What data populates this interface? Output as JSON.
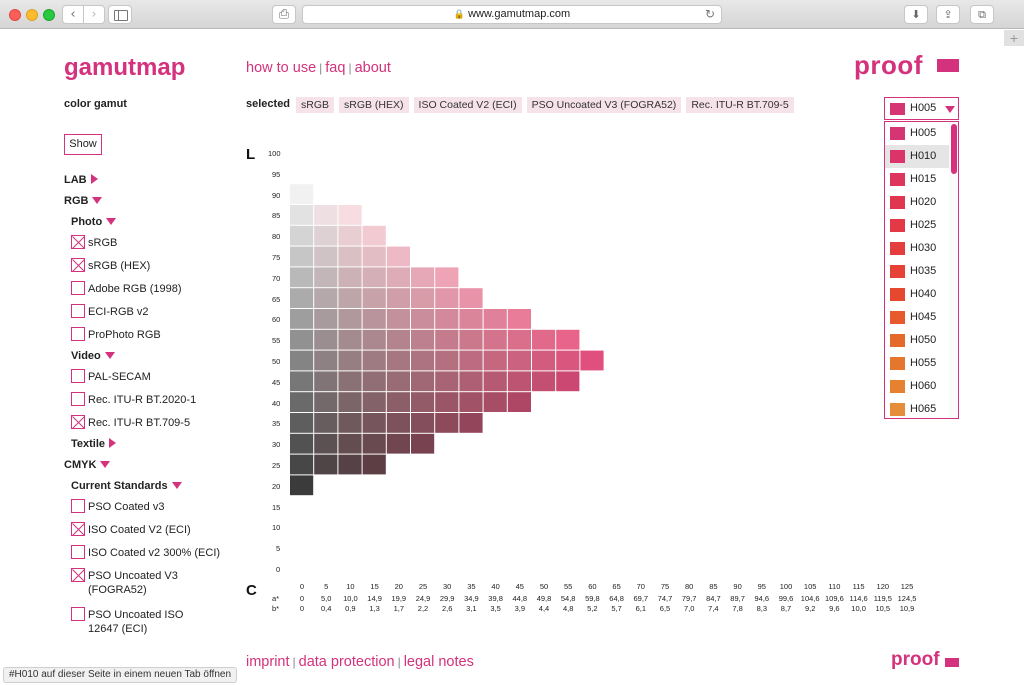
{
  "browser": {
    "url": "www.gamutmap.com",
    "status_text": "#H010 auf dieser Seite in einem neuen Tab öffnen"
  },
  "header": {
    "logo": "gamutmap",
    "nav": [
      "how to use",
      "faq",
      "about"
    ],
    "proof": "proof",
    "accent_color": "#d4327c"
  },
  "sidebar": {
    "title": "color gamut",
    "show_label": "Show",
    "tree": [
      {
        "label": "LAB",
        "level": 0,
        "expanded": false
      },
      {
        "label": "RGB",
        "level": 0,
        "expanded": true
      },
      {
        "label": "Photo",
        "level": 1,
        "expanded": true
      },
      {
        "label": "sRGB",
        "checked": true
      },
      {
        "label": "sRGB (HEX)",
        "checked": true
      },
      {
        "label": "Adobe RGB (1998)",
        "checked": false
      },
      {
        "label": "ECI-RGB v2",
        "checked": false
      },
      {
        "label": "ProPhoto RGB",
        "checked": false
      },
      {
        "label": "Video",
        "level": 1,
        "expanded": true
      },
      {
        "label": "PAL-SECAM",
        "checked": false
      },
      {
        "label": "Rec. ITU-R BT.2020-1",
        "checked": false
      },
      {
        "label": "Rec. ITU-R BT.709-5",
        "checked": true
      },
      {
        "label": "Textile",
        "level": 1,
        "expanded": false
      },
      {
        "label": "CMYK",
        "level": 0,
        "expanded": true
      },
      {
        "label": "Current Standards",
        "level": 1,
        "expanded": true
      },
      {
        "label": "PSO Coated v3",
        "checked": false
      },
      {
        "label": "ISO Coated V2 (ECI)",
        "checked": true
      },
      {
        "label": "ISO Coated v2 300% (ECI)",
        "checked": false
      },
      {
        "label": "PSO Uncoated V3 (FOGRA52)",
        "checked": true
      },
      {
        "label": "PSO Uncoated ISO 12647 (ECI)",
        "checked": false
      }
    ]
  },
  "selected": {
    "label": "selected",
    "chips": [
      "sRGB",
      "sRGB (HEX)",
      "ISO Coated V2 (ECI)",
      "PSO Uncoated V3 (FOGRA52)",
      "Rec. ITU-R BT.709-5"
    ]
  },
  "hue_select": {
    "value": "H005",
    "value_color": "#d63573",
    "highlighted": "H010",
    "options": [
      {
        "label": "H005",
        "color": "#d63573"
      },
      {
        "label": "H010",
        "color": "#db3468"
      },
      {
        "label": "H015",
        "color": "#de355d"
      },
      {
        "label": "H020",
        "color": "#e03652"
      },
      {
        "label": "H025",
        "color": "#e33947"
      },
      {
        "label": "H030",
        "color": "#e43d3e"
      },
      {
        "label": "H035",
        "color": "#e64236"
      },
      {
        "label": "H040",
        "color": "#e6472f"
      },
      {
        "label": "H045",
        "color": "#e65a2d"
      },
      {
        "label": "H050",
        "color": "#e6692c"
      },
      {
        "label": "H055",
        "color": "#e5762d"
      },
      {
        "label": "H060",
        "color": "#e5812f"
      },
      {
        "label": "H065",
        "color": "#e68d3a"
      }
    ]
  },
  "chart_data": {
    "type": "heatmap",
    "hue": "H005",
    "ylabel": "L",
    "xlabel": "C",
    "l_ticks": [
      100,
      95,
      90,
      85,
      80,
      75,
      70,
      65,
      60,
      55,
      50,
      45,
      40,
      35,
      30,
      25,
      20,
      15,
      10,
      5,
      0
    ],
    "c_values": [
      0,
      5,
      10,
      15,
      20,
      25,
      30,
      35,
      40,
      45,
      50,
      55,
      60,
      65,
      70,
      75,
      80,
      85,
      90,
      95,
      100,
      105,
      110,
      115,
      120,
      125
    ],
    "a_label": "a*",
    "a_values": [
      "0",
      "5,0",
      "10,0",
      "14,9",
      "19,9",
      "24,9",
      "29,9",
      "34,9",
      "39,8",
      "44,8",
      "49,8",
      "54,8",
      "59,8",
      "64,8",
      "69,7",
      "74,7",
      "79,7",
      "84,7",
      "89,7",
      "94,6",
      "99,6",
      "104,6",
      "109,6",
      "114,6",
      "119,5",
      "124,5"
    ],
    "b_label": "b*",
    "b_values": [
      "0",
      "0,4",
      "0,9",
      "1,3",
      "1,7",
      "2,2",
      "2,6",
      "3,1",
      "3,5",
      "3,9",
      "4,4",
      "4,8",
      "5,2",
      "5,7",
      "6,1",
      "6,5",
      "7,0",
      "7,4",
      "7,8",
      "8,3",
      "8,7",
      "9,2",
      "9,6",
      "10,0",
      "10,5",
      "10,9"
    ],
    "gamut_max_c_by_L": [
      {
        "L": 95,
        "max_c": 0
      },
      {
        "L": 90,
        "max_c": 10
      },
      {
        "L": 85,
        "max_c": 15
      },
      {
        "L": 80,
        "max_c": 20
      },
      {
        "L": 75,
        "max_c": 30
      },
      {
        "L": 70,
        "max_c": 35
      },
      {
        "L": 65,
        "max_c": 45
      },
      {
        "L": 60,
        "max_c": 55
      },
      {
        "L": 55,
        "max_c": 60
      },
      {
        "L": 50,
        "max_c": 55
      },
      {
        "L": 45,
        "max_c": 45
      },
      {
        "L": 40,
        "max_c": 35
      },
      {
        "L": 35,
        "max_c": 25
      },
      {
        "L": 30,
        "max_c": 15
      },
      {
        "L": 25,
        "max_c": 0
      }
    ]
  },
  "footer": {
    "links": [
      "imprint",
      "data protection",
      "legal notes"
    ],
    "proof": "proof"
  }
}
